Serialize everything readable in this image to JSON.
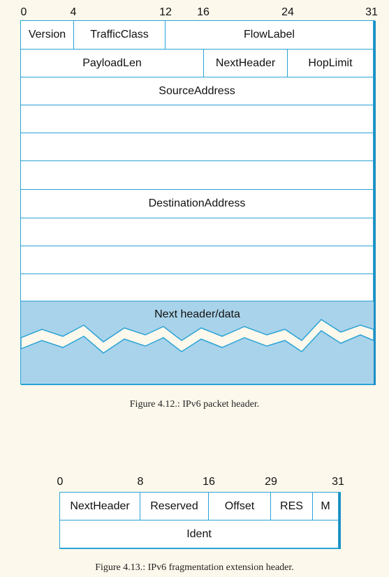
{
  "figure1": {
    "bit_labels": [
      "0",
      "4",
      "12",
      "16",
      "24",
      "31"
    ],
    "fields": {
      "version": "Version",
      "traffic_class": "TrafficClass",
      "flow_label": "FlowLabel",
      "payload_len": "PayloadLen",
      "next_header": "NextHeader",
      "hop_limit": "HopLimit",
      "source_address": "SourceAddress",
      "destination_address": "DestinationAddress",
      "next_header_data": "Next header/data"
    },
    "caption": "Figure 4.12.: IPv6 packet header.",
    "data_fill_color": "#a9d3ea",
    "border_color": "#2aa3d6"
  },
  "figure2": {
    "bit_labels": [
      "0",
      "8",
      "16",
      "29",
      "31"
    ],
    "fields": {
      "next_header": "NextHeader",
      "reserved": "Reserved",
      "offset": "Offset",
      "res": "RES",
      "m": "M",
      "ident": "Ident"
    },
    "caption": "Figure 4.13.: IPv6 fragmentation extension header."
  }
}
